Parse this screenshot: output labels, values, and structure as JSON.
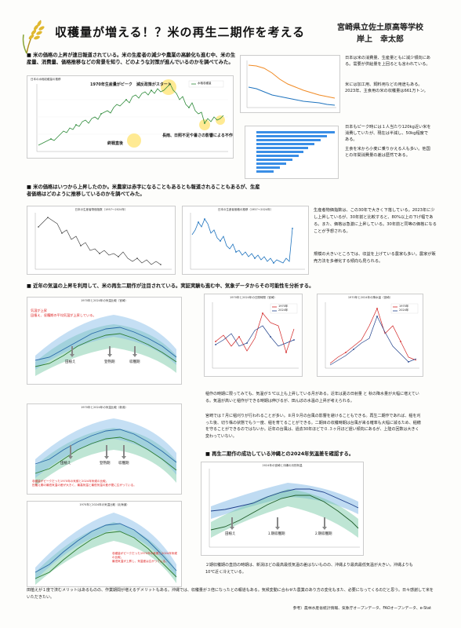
{
  "header": {
    "title": "収穫量が増える！？米の再生二期作を考える",
    "school": "宮崎県立佐土原高等学校",
    "author": "岸上　幸太郎"
  },
  "section1": {
    "heading": "■ 米の価格の上昇が連日報道されている。米の生産者の減少や農業の高齢化も進む中、米の生産量、消費量、価格推移などの背景を知り、どのような対策が進んでいるのかを調べてみた。",
    "chart_title": "日本の水稲収穫量の推移",
    "legend": "水稲収穫量",
    "annotation_peak": "1970年生産量がピーク　減反政策がスタート",
    "annotation_postwar": "終戦直後",
    "annotation_weather": "長雨、日照不足や暑さの影響による不作",
    "right_text_1": "日本は米の消費量、生産量ともに減少傾向にある。需要が供給量を上回るとも言われている。",
    "right_text_2": "米には加工用、飼料用などの用途もある。2023年、主食用の米の収穫量は661万トン。",
    "right_text_3": "日本もピーク時には１人当たり120kg近い米を消費していたが、現在は半減し、50kg程度である。",
    "right_text_4": "主食を米から小麦に乗りかえる人も多い。他国との年間消費量の差は歴然である。"
  },
  "section2": {
    "heading": "■ 米の価格はいつから上昇したのか。米農家は赤字になることもあるとも報道されることもあるが、生産者価格はどのように推移しているのかを調べてみた。",
    "chart1_title": "日本の生産者物価指数（1957〜2024年）",
    "chart2_title": "日本の生産者価格の推移（1957〜2024年）",
    "text_1": "生産者物価指数は、この30年で大きく下落している。2023年に少し上昇しているが、30年前と比較すると、80%以上の下げ幅である。また、価格は急激に上昇している。30年前と同等の価格になることが予想される。",
    "text_2": "規模の大きいところでは、収益を上げている農家も多い。農家が販売方法を多様化する傾向も見られる。"
  },
  "section3": {
    "heading": "■ 近年の気温の上昇を利用して、米の再生二期作が注目されている。実証実験も進む中、気象データからその可能性を分析する。",
    "chart_a_title": "1970年と2024年の気温比較（宮崎）",
    "chart_a_note": "気温が上昇\n田植え、収穫期の平均気温が上昇している。",
    "labels_a": [
      "田植え",
      "登熟期",
      "収穫期"
    ],
    "chart_b_title": "1970年と2024年の日照時間（宮崎）",
    "chart_c_title": "1970年と2024年の降水量（宮崎）",
    "legend_bc": [
      "1970年",
      "2024年"
    ],
    "chart_d_title": "1970年と2024年の気温比較（新潟）",
    "chart_d_note": "収穫量がピークだった1970年の気候と2024年気候の比較。\n田植え期の最低気温の差が大きく、最高気温と最低気温の差が更に広がっている。",
    "labels_d": [
      "田植え",
      "登熟期",
      "収穫期"
    ],
    "chart_e_title": "1970年と2024年の気温比較（北海道）",
    "chart_e_note": "収穫量がピークだった1970年の気候と2024年気候の比較。\n最低気温が上昇し、気温差は広がっている。",
    "paragraph_1": "稲作の時期に限ってみても、気温が５℃以上も上昇している月がある。近年は夏の日射量 と 秋の降水量が大幅に増えている。気温が高いと稲作ができる時期は伸びるが、田んぼの水温の上昇が考えられる。",
    "paragraph_2": "宮崎では７月に稲刈りが行われることが多い。８月９月の台風の影響を避けることもできる。再生二期作であれば、稲を刈った後、切り株の状態でもう一度、稲を育てることができる。二期目の収穫時期は台風が来る確率も大幅に減るため、稲穂を守ることができるのではないか。近年の台風は、過去30年ほどで０.３ヶ月ほど遅い傾向にあるが、上陸の回数は大きく変わっていない。",
    "sub_heading": "■ 再生二期作の成功している沖縄との2024年気温差を確認する。",
    "chart_f_title": "2024年の宮崎と沖縄の月別気温",
    "labels_f": [
      "田植え",
      "１期収穫期",
      "２期収穫期"
    ],
    "paragraph_3": "２期収穫期の直前の時期は、新潟ほどの最高最低気温の差はないものの、沖縄より最高最低気温が大きい。沖縄よりも10℃近く冷えている。",
    "conclusion": "田植えが１度で済むメリットはあるものの、作業期間が増えるデメリットもある。沖縄では、収穫量が３倍になったとの報道もある。気候変動に合わせた農業のあり方の変化もまた、必要になってくるのだと思う。日々感謝して米をいただきたい。",
    "references": "参考）農林水産省統計情報、気象庁オープンデータ、FAOオープンデータ、e-Stat"
  },
  "colors": {
    "accent_green": "#2e7d32",
    "accent_blue": "#1e73be",
    "annotation_yellow": "#ffe680",
    "red": "#d22222"
  }
}
